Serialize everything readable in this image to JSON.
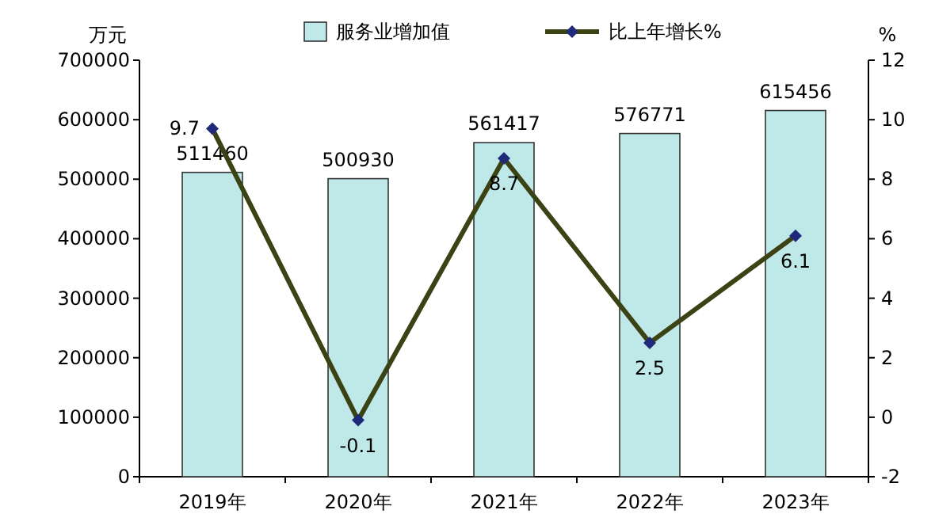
{
  "chart_data": {
    "type": "bar",
    "ylabel": "万元",
    "y2label": "%",
    "categories": [
      "2019年",
      "2020年",
      "2021年",
      "2022年",
      "2023年"
    ],
    "series": [
      {
        "name": "服务业增加值",
        "color": "#bfe8e8",
        "values": [
          511460,
          500930,
          561417,
          576771,
          615456
        ]
      },
      {
        "name": "比上年增长%",
        "type": "line",
        "axis": "y2",
        "color": "#3b4214",
        "marker": "diamond",
        "values": [
          9.7,
          -0.1,
          8.7,
          2.5,
          6.1
        ]
      }
    ],
    "ylim": [
      0,
      700000
    ],
    "yticks": [
      0,
      100000,
      200000,
      300000,
      400000,
      500000,
      600000,
      700000
    ],
    "y2lim": [
      -2,
      12
    ],
    "y2ticks": [
      -2,
      0,
      2,
      4,
      6,
      8,
      10,
      12
    ],
    "data_labels": true,
    "legend": "top",
    "grid": false
  }
}
